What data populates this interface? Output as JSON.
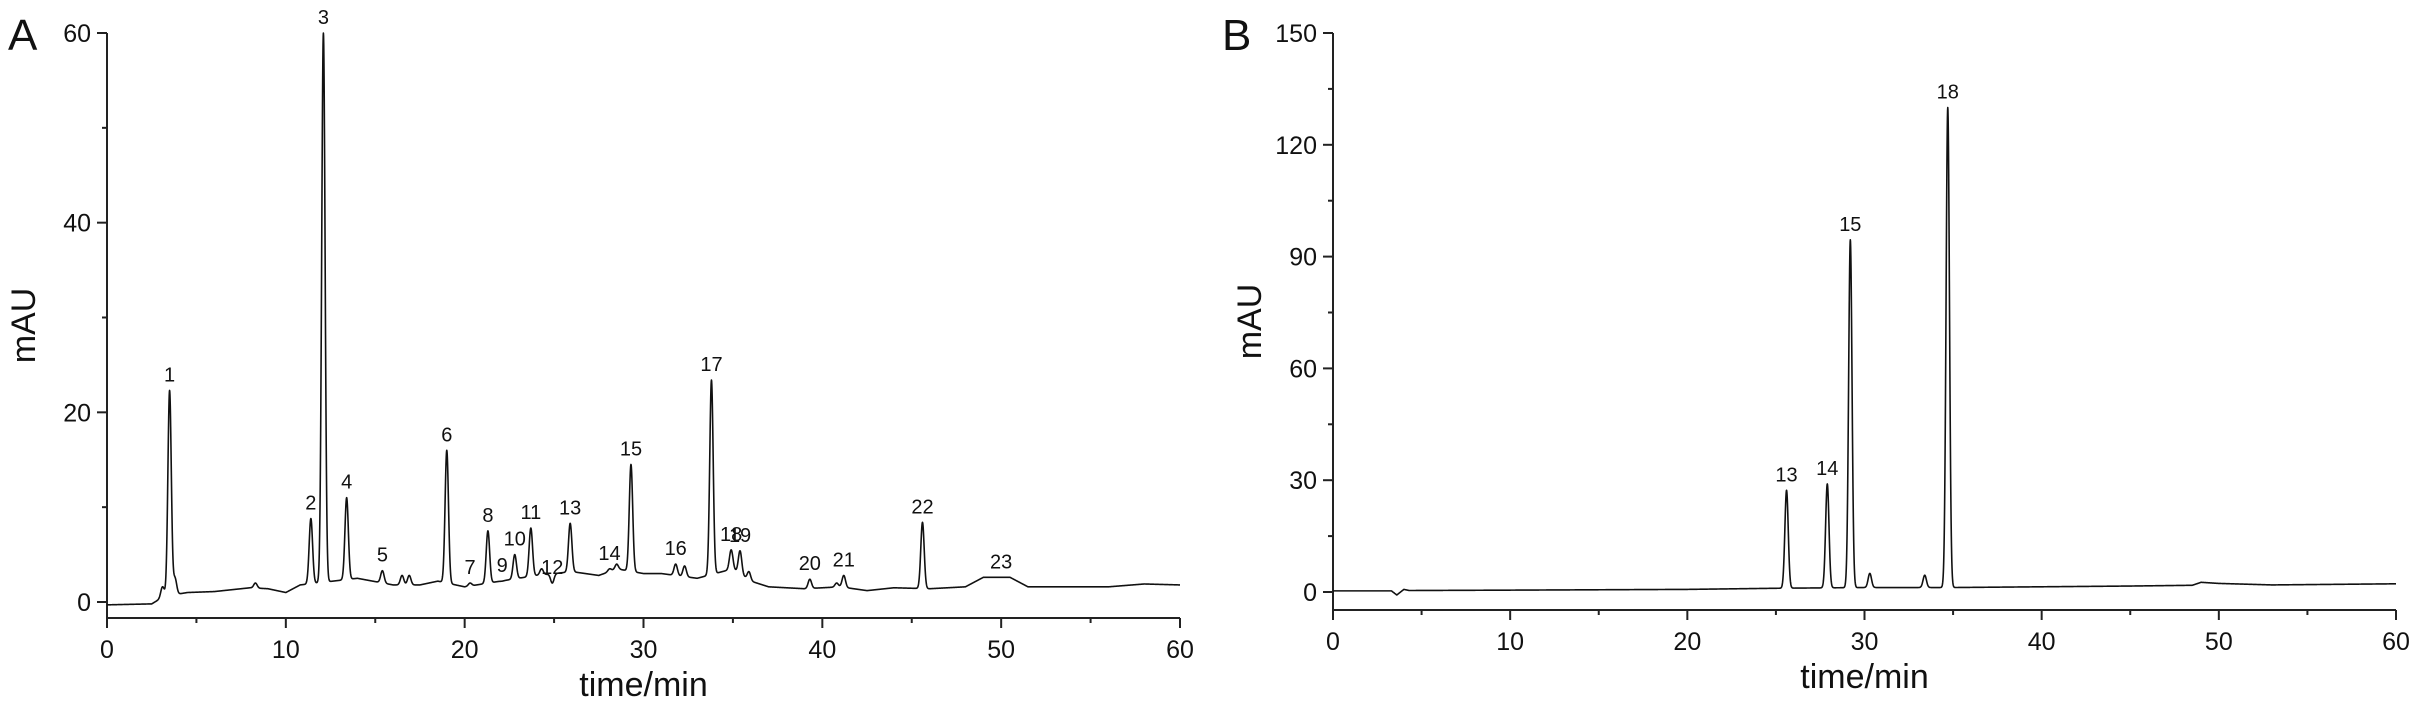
{
  "chart_data": [
    {
      "type": "line",
      "panel": "A",
      "xlabel": "time/min",
      "ylabel": "mAU",
      "xlim": [
        0,
        60
      ],
      "ylim": [
        -2,
        60
      ],
      "xticks": [
        0,
        10,
        20,
        30,
        40,
        50,
        60
      ],
      "yticks": [
        0,
        20,
        40,
        60
      ],
      "baseline": [
        [
          0,
          -0.3
        ],
        [
          2.5,
          -0.2
        ],
        [
          3.2,
          0.6
        ],
        [
          4.5,
          1.0
        ],
        [
          6,
          1.1
        ],
        [
          8,
          1.5
        ],
        [
          9,
          1.4
        ],
        [
          10,
          1.0
        ],
        [
          10.8,
          1.8
        ],
        [
          14,
          2.5
        ],
        [
          16,
          1.8
        ],
        [
          17.5,
          1.8
        ],
        [
          18.5,
          2.2
        ],
        [
          20,
          1.6
        ],
        [
          22,
          2.2
        ],
        [
          24,
          2.8
        ],
        [
          26,
          3.2
        ],
        [
          27.5,
          2.8
        ],
        [
          28.5,
          3.5
        ],
        [
          30,
          3.0
        ],
        [
          31,
          3.0
        ],
        [
          33,
          2.5
        ],
        [
          35,
          3.5
        ],
        [
          36,
          2.2
        ],
        [
          37,
          1.6
        ],
        [
          39,
          1.4
        ],
        [
          41,
          1.6
        ],
        [
          42.5,
          1.2
        ],
        [
          44,
          1.5
        ],
        [
          46,
          1.4
        ],
        [
          48,
          1.6
        ],
        [
          49,
          2.6
        ],
        [
          50.5,
          2.6
        ],
        [
          51.5,
          1.6
        ],
        [
          54,
          1.6
        ],
        [
          56,
          1.6
        ],
        [
          58,
          1.9
        ],
        [
          60,
          1.8
        ]
      ],
      "peaks": [
        {
          "label": "1",
          "time": 3.5,
          "height": 22.3
        },
        {
          "label": "2",
          "time": 11.4,
          "height": 8.8
        },
        {
          "label": "3",
          "time": 12.1,
          "height": 60
        },
        {
          "label": "4",
          "time": 13.4,
          "height": 11.0
        },
        {
          "label": "5",
          "time": 15.4,
          "height": 3.3
        },
        {
          "label": "6",
          "time": 19.0,
          "height": 16.0
        },
        {
          "label": "7",
          "time": 20.3,
          "height": 2.0
        },
        {
          "label": "8",
          "time": 21.3,
          "height": 7.5
        },
        {
          "label": "9",
          "time": 22.1,
          "height": 2.2
        },
        {
          "label": "10",
          "time": 22.8,
          "height": 5.0
        },
        {
          "label": "11",
          "time": 23.7,
          "height": 7.8
        },
        {
          "label": "12",
          "time": 24.9,
          "height": 2.0
        },
        {
          "label": "13",
          "time": 25.9,
          "height": 8.3
        },
        {
          "label": "14",
          "time": 28.1,
          "height": 3.5
        },
        {
          "label": "15",
          "time": 29.3,
          "height": 14.5
        },
        {
          "label": "16",
          "time": 31.8,
          "height": 4.0
        },
        {
          "label": "17",
          "time": 33.8,
          "height": 23.4
        },
        {
          "label": "18",
          "time": 34.9,
          "height": 5.5
        },
        {
          "label": "19",
          "time": 35.4,
          "height": 5.4
        },
        {
          "label": "20",
          "time": 39.3,
          "height": 2.4
        },
        {
          "label": "21",
          "time": 41.2,
          "height": 2.8
        },
        {
          "label": "22",
          "time": 45.6,
          "height": 8.4
        },
        {
          "label": "23",
          "time": 50.0,
          "height": 2.6
        }
      ],
      "minor_peaks": [
        {
          "time": 3.1,
          "height": 1.6
        },
        {
          "time": 3.8,
          "height": 2.5
        },
        {
          "time": 8.3,
          "height": 2.0
        },
        {
          "time": 16.5,
          "height": 2.8
        },
        {
          "time": 16.9,
          "height": 2.8
        },
        {
          "time": 18.5,
          "height": 2.2
        },
        {
          "time": 24.3,
          "height": 3.5
        },
        {
          "time": 27.8,
          "height": 3.0
        },
        {
          "time": 28.5,
          "height": 4.0
        },
        {
          "time": 30.5,
          "height": 3.0
        },
        {
          "time": 32.3,
          "height": 3.8
        },
        {
          "time": 35.9,
          "height": 3.2
        },
        {
          "time": 40.8,
          "height": 2.0
        }
      ]
    },
    {
      "type": "line",
      "panel": "B",
      "xlabel": "time/min",
      "ylabel": "mAU",
      "xlim": [
        0,
        60
      ],
      "ylim": [
        -5,
        150
      ],
      "xticks": [
        0,
        10,
        20,
        30,
        40,
        50,
        60
      ],
      "yticks": [
        0,
        30,
        60,
        90,
        120,
        150
      ],
      "baseline": [
        [
          0,
          0.3
        ],
        [
          3.3,
          0.3
        ],
        [
          3.6,
          -0.8
        ],
        [
          4.0,
          0.7
        ],
        [
          4.3,
          0.4
        ],
        [
          10,
          0.5
        ],
        [
          20,
          0.7
        ],
        [
          25,
          1.0
        ],
        [
          30,
          1.2
        ],
        [
          35,
          1.2
        ],
        [
          40,
          1.4
        ],
        [
          45,
          1.6
        ],
        [
          48.5,
          1.8
        ],
        [
          49,
          2.6
        ],
        [
          50,
          2.3
        ],
        [
          53,
          1.9
        ],
        [
          60,
          2.2
        ]
      ],
      "peaks": [
        {
          "label": "13",
          "time": 25.6,
          "height": 27.3
        },
        {
          "label": "14",
          "time": 27.9,
          "height": 29.0
        },
        {
          "label": "15",
          "time": 29.2,
          "height": 94.5
        },
        {
          "label": "18",
          "time": 34.7,
          "height": 130
        }
      ],
      "minor_peaks": [
        {
          "time": 30.3,
          "height": 5.0
        },
        {
          "time": 33.4,
          "height": 4.5
        }
      ]
    }
  ]
}
